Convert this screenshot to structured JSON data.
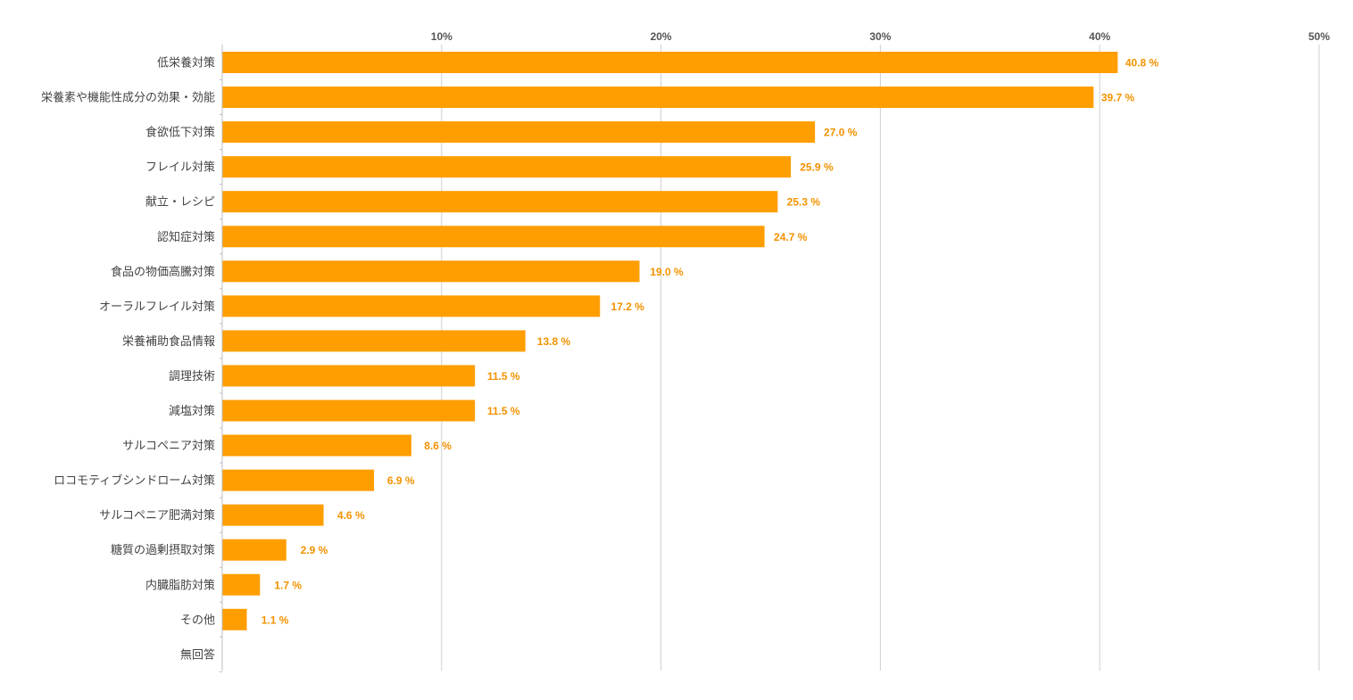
{
  "chart_data": {
    "type": "bar",
    "orientation": "horizontal",
    "categories": [
      "低栄養対策",
      "栄養素や機能性成分の効果・効能",
      "食欲低下対策",
      "フレイル対策",
      "献立・レシピ",
      "認知症対策",
      "食品の物価高騰対策",
      "オーラルフレイル対策",
      "栄養補助食品情報",
      "調理技術",
      "減塩対策",
      "サルコペニア対策",
      "ロコモティブシンドローム対策",
      "サルコペニア肥満対策",
      "糖質の過剰摂取対策",
      "内臓脂肪対策",
      "その他",
      "無回答"
    ],
    "values": [
      40.8,
      39.7,
      27.0,
      25.9,
      25.3,
      24.7,
      19.0,
      17.2,
      13.8,
      11.5,
      11.5,
      8.6,
      6.9,
      4.6,
      2.9,
      1.7,
      1.1,
      null
    ],
    "value_labels": [
      "40.8 %",
      "39.7 %",
      "27.0 %",
      "25.9 %",
      "25.3 %",
      "24.7 %",
      "19.0 %",
      "17.2 %",
      "13.8 %",
      "11.5 %",
      "11.5 %",
      "8.6 %",
      "6.9 %",
      "4.6 %",
      "2.9 %",
      "1.7 %",
      "1.1 %",
      ""
    ],
    "x_ticks": [
      "10%",
      "20%",
      "30%",
      "40%",
      "50%"
    ],
    "x_tick_values": [
      10,
      20,
      30,
      40,
      50
    ],
    "xlim": [
      0,
      50
    ],
    "axis_position": "top",
    "grid": true,
    "legend": "none",
    "bar_color": "#FF9E00",
    "label_color": "#F39200"
  }
}
